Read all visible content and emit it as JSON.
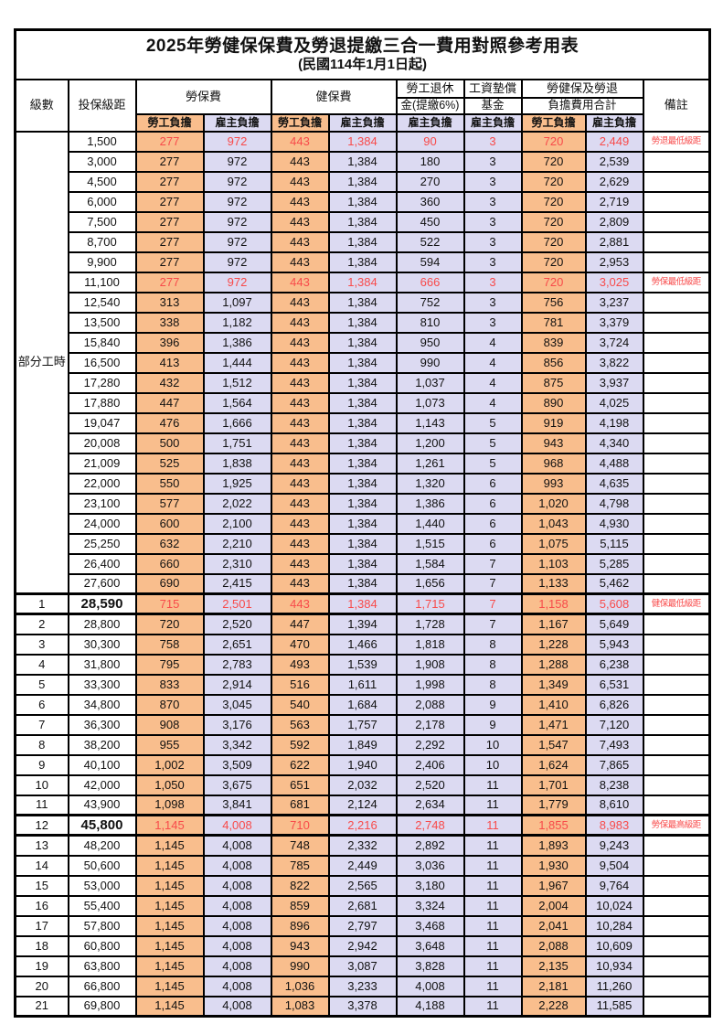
{
  "title": "2025年勞健保保費及勞退提繳三合一費用對照參考用表",
  "subtitle": "(民國114年1月1日起)",
  "colors": {
    "employee_bg": "#F9BE8D",
    "employer_bg": "#DCDAF2",
    "highlight_text": "#F84A4A",
    "border": "#000000"
  },
  "header": {
    "level": "級數",
    "bracket": "投保級距",
    "labor_ins": "勞保費",
    "health_ins": "健保費",
    "pension_line1": "勞工退休",
    "pension_line2": "金(提繳6%)",
    "wage_fund_line1": "工資墊償",
    "wage_fund_line2": "基金",
    "total_line1": "勞健保及勞退",
    "total_line2": "負擔費用合計",
    "note": "備註",
    "employee": "勞工負擔",
    "employer": "雇主負擔"
  },
  "group_label": "部分工時",
  "group_rowspan": 23,
  "rows": [
    {
      "level": "",
      "bracket": "1,500",
      "values": [
        "277",
        "972",
        "443",
        "1,384",
        "90",
        "3",
        "720",
        "2,449"
      ],
      "note": "勞退最低級距",
      "red": true,
      "bold": false
    },
    {
      "level": "",
      "bracket": "3,000",
      "values": [
        "277",
        "972",
        "443",
        "1,384",
        "180",
        "3",
        "720",
        "2,539"
      ],
      "note": "",
      "red": false,
      "bold": false
    },
    {
      "level": "",
      "bracket": "4,500",
      "values": [
        "277",
        "972",
        "443",
        "1,384",
        "270",
        "3",
        "720",
        "2,629"
      ],
      "note": "",
      "red": false,
      "bold": false
    },
    {
      "level": "",
      "bracket": "6,000",
      "values": [
        "277",
        "972",
        "443",
        "1,384",
        "360",
        "3",
        "720",
        "2,719"
      ],
      "note": "",
      "red": false,
      "bold": false
    },
    {
      "level": "",
      "bracket": "7,500",
      "values": [
        "277",
        "972",
        "443",
        "1,384",
        "450",
        "3",
        "720",
        "2,809"
      ],
      "note": "",
      "red": false,
      "bold": false
    },
    {
      "level": "",
      "bracket": "8,700",
      "values": [
        "277",
        "972",
        "443",
        "1,384",
        "522",
        "3",
        "720",
        "2,881"
      ],
      "note": "",
      "red": false,
      "bold": false
    },
    {
      "level": "",
      "bracket": "9,900",
      "values": [
        "277",
        "972",
        "443",
        "1,384",
        "594",
        "3",
        "720",
        "2,953"
      ],
      "note": "",
      "red": false,
      "bold": false
    },
    {
      "level": "",
      "bracket": "11,100",
      "values": [
        "277",
        "972",
        "443",
        "1,384",
        "666",
        "3",
        "720",
        "3,025"
      ],
      "note": "勞保最低級距",
      "red": true,
      "bold": false
    },
    {
      "level": "",
      "bracket": "12,540",
      "values": [
        "313",
        "1,097",
        "443",
        "1,384",
        "752",
        "3",
        "756",
        "3,237"
      ],
      "note": "",
      "red": false,
      "bold": false
    },
    {
      "level": "",
      "bracket": "13,500",
      "values": [
        "338",
        "1,182",
        "443",
        "1,384",
        "810",
        "3",
        "781",
        "3,379"
      ],
      "note": "",
      "red": false,
      "bold": false
    },
    {
      "level": "",
      "bracket": "15,840",
      "values": [
        "396",
        "1,386",
        "443",
        "1,384",
        "950",
        "4",
        "839",
        "3,724"
      ],
      "note": "",
      "red": false,
      "bold": false
    },
    {
      "level": "",
      "bracket": "16,500",
      "values": [
        "413",
        "1,444",
        "443",
        "1,384",
        "990",
        "4",
        "856",
        "3,822"
      ],
      "note": "",
      "red": false,
      "bold": false
    },
    {
      "level": "",
      "bracket": "17,280",
      "values": [
        "432",
        "1,512",
        "443",
        "1,384",
        "1,037",
        "4",
        "875",
        "3,937"
      ],
      "note": "",
      "red": false,
      "bold": false
    },
    {
      "level": "",
      "bracket": "17,880",
      "values": [
        "447",
        "1,564",
        "443",
        "1,384",
        "1,073",
        "4",
        "890",
        "4,025"
      ],
      "note": "",
      "red": false,
      "bold": false
    },
    {
      "level": "",
      "bracket": "19,047",
      "values": [
        "476",
        "1,666",
        "443",
        "1,384",
        "1,143",
        "5",
        "919",
        "4,198"
      ],
      "note": "",
      "red": false,
      "bold": false
    },
    {
      "level": "",
      "bracket": "20,008",
      "values": [
        "500",
        "1,751",
        "443",
        "1,384",
        "1,200",
        "5",
        "943",
        "4,340"
      ],
      "note": "",
      "red": false,
      "bold": false
    },
    {
      "level": "",
      "bracket": "21,009",
      "values": [
        "525",
        "1,838",
        "443",
        "1,384",
        "1,261",
        "5",
        "968",
        "4,488"
      ],
      "note": "",
      "red": false,
      "bold": false
    },
    {
      "level": "",
      "bracket": "22,000",
      "values": [
        "550",
        "1,925",
        "443",
        "1,384",
        "1,320",
        "6",
        "993",
        "4,635"
      ],
      "note": "",
      "red": false,
      "bold": false
    },
    {
      "level": "",
      "bracket": "23,100",
      "values": [
        "577",
        "2,022",
        "443",
        "1,384",
        "1,386",
        "6",
        "1,020",
        "4,798"
      ],
      "note": "",
      "red": false,
      "bold": false
    },
    {
      "level": "",
      "bracket": "24,000",
      "values": [
        "600",
        "2,100",
        "443",
        "1,384",
        "1,440",
        "6",
        "1,043",
        "4,930"
      ],
      "note": "",
      "red": false,
      "bold": false
    },
    {
      "level": "",
      "bracket": "25,250",
      "values": [
        "632",
        "2,210",
        "443",
        "1,384",
        "1,515",
        "6",
        "1,075",
        "5,115"
      ],
      "note": "",
      "red": false,
      "bold": false
    },
    {
      "level": "",
      "bracket": "26,400",
      "values": [
        "660",
        "2,310",
        "443",
        "1,384",
        "1,584",
        "7",
        "1,103",
        "5,285"
      ],
      "note": "",
      "red": false,
      "bold": false
    },
    {
      "level": "",
      "bracket": "27,600",
      "values": [
        "690",
        "2,415",
        "443",
        "1,384",
        "1,656",
        "7",
        "1,133",
        "5,462"
      ],
      "note": "",
      "red": false,
      "bold": false
    },
    {
      "level": "1",
      "bracket": "28,590",
      "values": [
        "715",
        "2,501",
        "443",
        "1,384",
        "1,715",
        "7",
        "1,158",
        "5,608"
      ],
      "note": "健保最低級距",
      "red": true,
      "bold": true
    },
    {
      "level": "2",
      "bracket": "28,800",
      "values": [
        "720",
        "2,520",
        "447",
        "1,394",
        "1,728",
        "7",
        "1,167",
        "5,649"
      ],
      "note": "",
      "red": false,
      "bold": false
    },
    {
      "level": "3",
      "bracket": "30,300",
      "values": [
        "758",
        "2,651",
        "470",
        "1,466",
        "1,818",
        "8",
        "1,228",
        "5,943"
      ],
      "note": "",
      "red": false,
      "bold": false
    },
    {
      "level": "4",
      "bracket": "31,800",
      "values": [
        "795",
        "2,783",
        "493",
        "1,539",
        "1,908",
        "8",
        "1,288",
        "6,238"
      ],
      "note": "",
      "red": false,
      "bold": false
    },
    {
      "level": "5",
      "bracket": "33,300",
      "values": [
        "833",
        "2,914",
        "516",
        "1,611",
        "1,998",
        "8",
        "1,349",
        "6,531"
      ],
      "note": "",
      "red": false,
      "bold": false
    },
    {
      "level": "6",
      "bracket": "34,800",
      "values": [
        "870",
        "3,045",
        "540",
        "1,684",
        "2,088",
        "9",
        "1,410",
        "6,826"
      ],
      "note": "",
      "red": false,
      "bold": false
    },
    {
      "level": "7",
      "bracket": "36,300",
      "values": [
        "908",
        "3,176",
        "563",
        "1,757",
        "2,178",
        "9",
        "1,471",
        "7,120"
      ],
      "note": "",
      "red": false,
      "bold": false
    },
    {
      "level": "8",
      "bracket": "38,200",
      "values": [
        "955",
        "3,342",
        "592",
        "1,849",
        "2,292",
        "10",
        "1,547",
        "7,493"
      ],
      "note": "",
      "red": false,
      "bold": false
    },
    {
      "level": "9",
      "bracket": "40,100",
      "values": [
        "1,002",
        "3,509",
        "622",
        "1,940",
        "2,406",
        "10",
        "1,624",
        "7,865"
      ],
      "note": "",
      "red": false,
      "bold": false
    },
    {
      "level": "10",
      "bracket": "42,000",
      "values": [
        "1,050",
        "3,675",
        "651",
        "2,032",
        "2,520",
        "11",
        "1,701",
        "8,238"
      ],
      "note": "",
      "red": false,
      "bold": false
    },
    {
      "level": "11",
      "bracket": "43,900",
      "values": [
        "1,098",
        "3,841",
        "681",
        "2,124",
        "2,634",
        "11",
        "1,779",
        "8,610"
      ],
      "note": "",
      "red": false,
      "bold": false
    },
    {
      "level": "12",
      "bracket": "45,800",
      "values": [
        "1,145",
        "4,008",
        "710",
        "2,216",
        "2,748",
        "11",
        "1,855",
        "8,983"
      ],
      "note": "勞保最高級距",
      "red": true,
      "bold": true
    },
    {
      "level": "13",
      "bracket": "48,200",
      "values": [
        "1,145",
        "4,008",
        "748",
        "2,332",
        "2,892",
        "11",
        "1,893",
        "9,243"
      ],
      "note": "",
      "red": false,
      "bold": false
    },
    {
      "level": "14",
      "bracket": "50,600",
      "values": [
        "1,145",
        "4,008",
        "785",
        "2,449",
        "3,036",
        "11",
        "1,930",
        "9,504"
      ],
      "note": "",
      "red": false,
      "bold": false
    },
    {
      "level": "15",
      "bracket": "53,000",
      "values": [
        "1,145",
        "4,008",
        "822",
        "2,565",
        "3,180",
        "11",
        "1,967",
        "9,764"
      ],
      "note": "",
      "red": false,
      "bold": false
    },
    {
      "level": "16",
      "bracket": "55,400",
      "values": [
        "1,145",
        "4,008",
        "859",
        "2,681",
        "3,324",
        "11",
        "2,004",
        "10,024"
      ],
      "note": "",
      "red": false,
      "bold": false
    },
    {
      "level": "17",
      "bracket": "57,800",
      "values": [
        "1,145",
        "4,008",
        "896",
        "2,797",
        "3,468",
        "11",
        "2,041",
        "10,284"
      ],
      "note": "",
      "red": false,
      "bold": false
    },
    {
      "level": "18",
      "bracket": "60,800",
      "values": [
        "1,145",
        "4,008",
        "943",
        "2,942",
        "3,648",
        "11",
        "2,088",
        "10,609"
      ],
      "note": "",
      "red": false,
      "bold": false
    },
    {
      "level": "19",
      "bracket": "63,800",
      "values": [
        "1,145",
        "4,008",
        "990",
        "3,087",
        "3,828",
        "11",
        "2,135",
        "10,934"
      ],
      "note": "",
      "red": false,
      "bold": false
    },
    {
      "level": "20",
      "bracket": "66,800",
      "values": [
        "1,145",
        "4,008",
        "1,036",
        "3,233",
        "4,008",
        "11",
        "2,181",
        "11,260"
      ],
      "note": "",
      "red": false,
      "bold": false
    },
    {
      "level": "21",
      "bracket": "69,800",
      "values": [
        "1,145",
        "4,008",
        "1,083",
        "3,378",
        "4,188",
        "11",
        "2,228",
        "11,585"
      ],
      "note": "",
      "red": false,
      "bold": false
    }
  ]
}
